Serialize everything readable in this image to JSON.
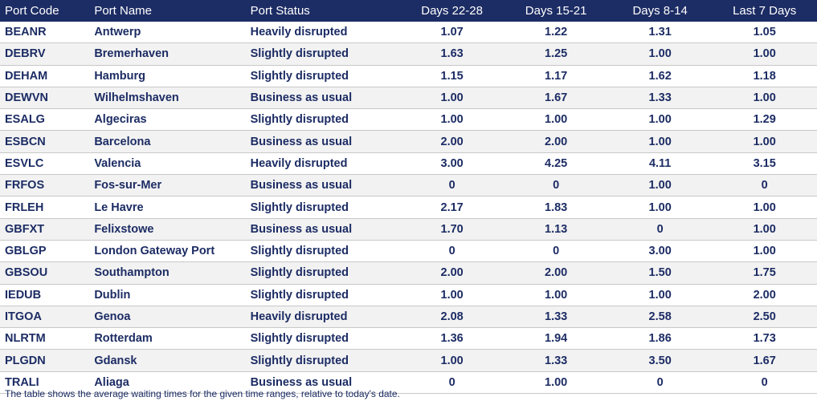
{
  "table": {
    "headers": [
      "Port Code",
      "Port Name",
      "Port Status",
      "Days 22-28",
      "Days 15-21",
      "Days 8-14",
      "Last 7 Days"
    ],
    "rows": [
      [
        "BEANR",
        "Antwerp",
        "Heavily disrupted",
        "1.07",
        "1.22",
        "1.31",
        "1.05"
      ],
      [
        "DEBRV",
        "Bremerhaven",
        "Slightly disrupted",
        "1.63",
        "1.25",
        "1.00",
        "1.00"
      ],
      [
        "DEHAM",
        "Hamburg",
        "Slightly disrupted",
        "1.15",
        "1.17",
        "1.62",
        "1.18"
      ],
      [
        "DEWVN",
        "Wilhelmshaven",
        "Business as usual",
        "1.00",
        "1.67",
        "1.33",
        "1.00"
      ],
      [
        "ESALG",
        "Algeciras",
        "Slightly disrupted",
        "1.00",
        "1.00",
        "1.00",
        "1.29"
      ],
      [
        "ESBCN",
        "Barcelona",
        "Business as usual",
        "2.00",
        "2.00",
        "1.00",
        "1.00"
      ],
      [
        "ESVLC",
        "Valencia",
        "Heavily disrupted",
        "3.00",
        "4.25",
        "4.11",
        "3.15"
      ],
      [
        "FRFOS",
        "Fos-sur-Mer",
        "Business as usual",
        "0",
        "0",
        "1.00",
        "0"
      ],
      [
        "FRLEH",
        "Le Havre",
        "Slightly disrupted",
        "2.17",
        "1.83",
        "1.00",
        "1.00"
      ],
      [
        "GBFXT",
        "Felixstowe",
        "Business as usual",
        "1.70",
        "1.13",
        "0",
        "1.00"
      ],
      [
        "GBLGP",
        "London Gateway Port",
        "Slightly disrupted",
        "0",
        "0",
        "3.00",
        "1.00"
      ],
      [
        "GBSOU",
        "Southampton",
        "Slightly disrupted",
        "2.00",
        "2.00",
        "1.50",
        "1.75"
      ],
      [
        "IEDUB",
        "Dublin",
        "Slightly disrupted",
        "1.00",
        "1.00",
        "1.00",
        "2.00"
      ],
      [
        "ITGOA",
        "Genoa",
        "Heavily disrupted",
        "2.08",
        "1.33",
        "2.58",
        "2.50"
      ],
      [
        "NLRTM",
        "Rotterdam",
        "Slightly disrupted",
        "1.36",
        "1.94",
        "1.86",
        "1.73"
      ],
      [
        "PLGDN",
        "Gdansk",
        "Slightly disrupted",
        "1.00",
        "1.33",
        "3.50",
        "1.67"
      ],
      [
        "TRALI",
        "Aliaga",
        "Business as usual",
        "0",
        "1.00",
        "0",
        "0"
      ]
    ]
  },
  "footnote": "The table shows the average waiting times for the given time ranges, relative to today's date.",
  "colors": {
    "header_bg": "#1c2c64",
    "header_text": "#ffffff",
    "body_text": "#1c2c64",
    "row_alt_bg": "#f2f2f2"
  }
}
